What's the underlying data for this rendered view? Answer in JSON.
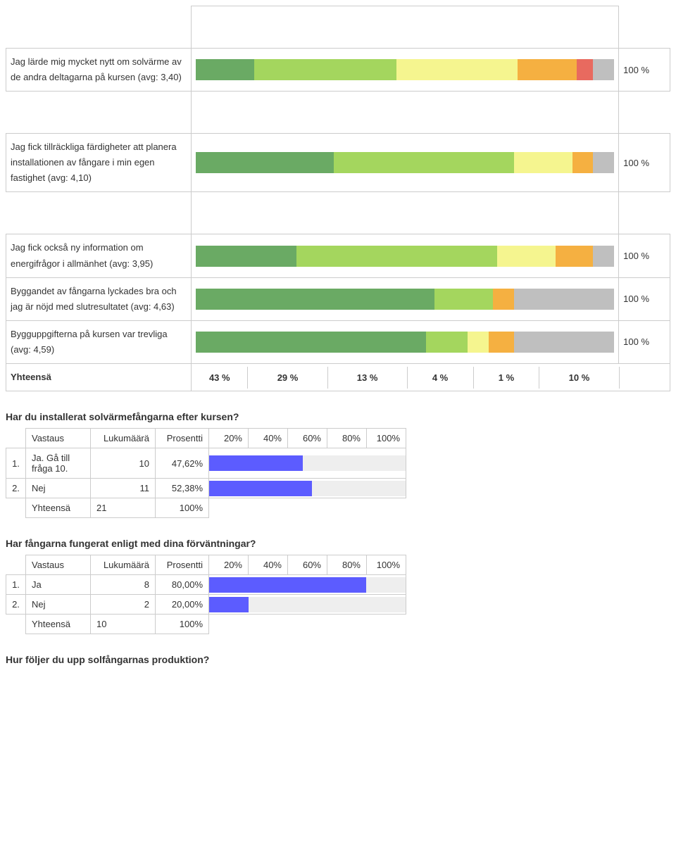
{
  "palette": {
    "darkgreen": "#6aaa64",
    "lightgreen": "#a4d65e",
    "yellow": "#f5f58f",
    "orange": "#f5b041",
    "red": "#e86a5f",
    "gray": "#bfbfbf",
    "hbar_fill": "#5c5cff",
    "hbar_track": "#eeeeee",
    "border": "#cccccc"
  },
  "stacked": {
    "percent_label": "100 %",
    "rows": [
      {
        "label": "Jag lärde mig mycket nytt om solvärme av de andra deltagarna på kursen (avg: 3,40)",
        "segments": [
          {
            "color_key": "darkgreen",
            "pct": 14
          },
          {
            "color_key": "lightgreen",
            "pct": 34
          },
          {
            "color_key": "yellow",
            "pct": 29
          },
          {
            "color_key": "orange",
            "pct": 14
          },
          {
            "color_key": "red",
            "pct": 4
          },
          {
            "color_key": "gray",
            "pct": 5
          }
        ]
      },
      {
        "label": "Jag fick tillräckliga färdigheter att planera installationen av fångare i min egen fastighet (avg: 4,10)",
        "segments": [
          {
            "color_key": "darkgreen",
            "pct": 33
          },
          {
            "color_key": "lightgreen",
            "pct": 43
          },
          {
            "color_key": "yellow",
            "pct": 14
          },
          {
            "color_key": "orange",
            "pct": 5
          },
          {
            "color_key": "gray",
            "pct": 5
          }
        ]
      },
      {
        "label": "Jag fick också ny information om energifrågor i allmänhet (avg: 3,95)",
        "segments": [
          {
            "color_key": "darkgreen",
            "pct": 24
          },
          {
            "color_key": "lightgreen",
            "pct": 48
          },
          {
            "color_key": "yellow",
            "pct": 14
          },
          {
            "color_key": "orange",
            "pct": 9
          },
          {
            "color_key": "gray",
            "pct": 5
          }
        ]
      },
      {
        "label": "Byggandet av fångarna lyckades bra och jag är nöjd med slutresultatet (avg: 4,63)",
        "segments": [
          {
            "color_key": "darkgreen",
            "pct": 57
          },
          {
            "color_key": "lightgreen",
            "pct": 14
          },
          {
            "color_key": "orange",
            "pct": 5
          },
          {
            "color_key": "gray",
            "pct": 24
          }
        ]
      },
      {
        "label": "Bygguppgifterna på kursen var trevliga (avg: 4,59)",
        "segments": [
          {
            "color_key": "darkgreen",
            "pct": 55
          },
          {
            "color_key": "lightgreen",
            "pct": 10
          },
          {
            "color_key": "yellow",
            "pct": 5
          },
          {
            "color_key": "orange",
            "pct": 6
          },
          {
            "color_key": "gray",
            "pct": 24
          }
        ]
      }
    ],
    "totals": {
      "label": "Yhteensä",
      "cells": [
        "43 %",
        "29 %",
        "13 %",
        "4 %",
        "1 %",
        "10 %"
      ]
    }
  },
  "q1": {
    "title": "Har du installerat solvärmefångarna efter kursen?",
    "columns": [
      "Vastaus",
      "Lukumäärä",
      "Prosentti",
      "20%",
      "40%",
      "60%",
      "80%",
      "100%"
    ],
    "rows": [
      {
        "idx": "1.",
        "answer": "Ja. Gå till fråga 10.",
        "count": "10",
        "pct_text": "47,62%",
        "pct_num": 47.62
      },
      {
        "idx": "2.",
        "answer": "Nej",
        "count": "11",
        "pct_text": "52,38%",
        "pct_num": 52.38
      }
    ],
    "total": {
      "label": "Yhteensä",
      "count": "21",
      "pct": "100%"
    }
  },
  "q2": {
    "title": "Har fångarna fungerat enligt med dina förväntningar?",
    "columns": [
      "Vastaus",
      "Lukumäärä",
      "Prosentti",
      "20%",
      "40%",
      "60%",
      "80%",
      "100%"
    ],
    "rows": [
      {
        "idx": "1.",
        "answer": "Ja",
        "count": "8",
        "pct_text": "80,00%",
        "pct_num": 80
      },
      {
        "idx": "2.",
        "answer": "Nej",
        "count": "2",
        "pct_text": "20,00%",
        "pct_num": 20
      }
    ],
    "total": {
      "label": "Yhteensä",
      "count": "10",
      "pct": "100%"
    }
  },
  "q3": {
    "title": "Hur följer du upp solfångarnas produktion?"
  }
}
